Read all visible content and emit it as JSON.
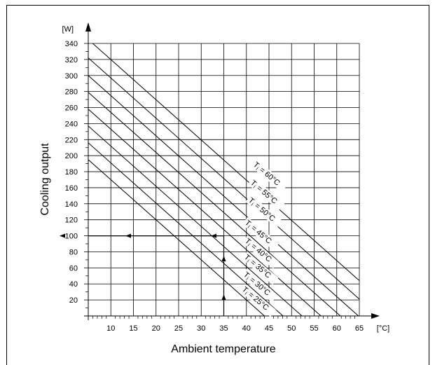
{
  "chart_data": {
    "type": "line",
    "title": "",
    "xlabel": "Ambient temperature",
    "ylabel": "Cooling output",
    "x_unit": "[°C]",
    "y_unit": "[W]",
    "xlim": [
      5,
      65
    ],
    "ylim": [
      0,
      340
    ],
    "x_ticks": [
      10,
      15,
      20,
      25,
      30,
      35,
      40,
      45,
      50,
      55,
      60,
      65
    ],
    "y_ticks": [
      20,
      40,
      60,
      80,
      100,
      120,
      140,
      160,
      180,
      200,
      220,
      240,
      260,
      280,
      300,
      320,
      340
    ],
    "grid": true,
    "series": [
      {
        "name": "Ti = 60°C",
        "label_parts": [
          "T",
          "i",
          " = 60°C"
        ],
        "x": [
          5,
          65
        ],
        "y": [
          345,
          44
        ]
      },
      {
        "name": "Ti = 55°C",
        "label_parts": [
          "T",
          "i",
          " = 55°C"
        ],
        "x": [
          5,
          65
        ],
        "y": [
          322,
          21
        ]
      },
      {
        "name": "Ti = 50°C",
        "label_parts": [
          "T",
          "i",
          " = 50°C"
        ],
        "x": [
          5,
          65
        ],
        "y": [
          300,
          -1
        ]
      },
      {
        "name": "Ti = 45°C",
        "label_parts": [
          "T",
          "i",
          " = 45°C"
        ],
        "x": [
          5,
          60.8
        ],
        "y": [
          279,
          0
        ]
      },
      {
        "name": "Ti = 40°C",
        "label_parts": [
          "T",
          "i",
          " = 40°C"
        ],
        "x": [
          5,
          56.5
        ],
        "y": [
          258,
          0
        ]
      },
      {
        "name": "Ti = 35°C",
        "label_parts": [
          "T",
          "i",
          " = 35°C"
        ],
        "x": [
          5,
          52.3
        ],
        "y": [
          237,
          0
        ]
      },
      {
        "name": "Ti = 30°C",
        "label_parts": [
          "T",
          "i",
          " = 30°C"
        ],
        "x": [
          5,
          48.1
        ],
        "y": [
          216,
          0
        ]
      },
      {
        "name": "Ti = 25°C",
        "label_parts": [
          "T",
          "i",
          " = 25°C"
        ],
        "x": [
          5,
          44.0
        ],
        "y": [
          195,
          0
        ]
      }
    ],
    "reading_example": {
      "ambient_temperature": 35,
      "cooling_output": 100
    }
  }
}
